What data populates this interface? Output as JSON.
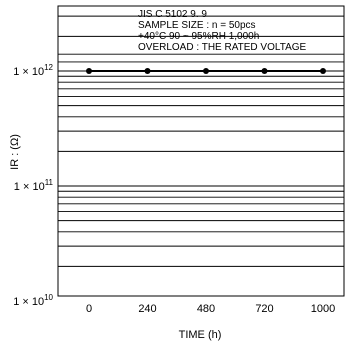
{
  "chart_data": {
    "type": "line",
    "x": [
      0,
      240,
      480,
      720,
      1000
    ],
    "x_tick_labels": [
      "0",
      "240",
      "480",
      "720",
      "1000"
    ],
    "xlabel": "TIME  (h)",
    "ylabel": "IR : (Ω)",
    "y_scale": "log",
    "ylim": [
      10000000000,
      1600000000000
    ],
    "y_ticks": [
      {
        "value": 1000000000000,
        "base": "1 × 10",
        "exp": "12"
      },
      {
        "value": 100000000000,
        "base": "1 × 10",
        "exp": "11"
      },
      {
        "value": 10000000000,
        "base": "1 × 10",
        "exp": "10"
      }
    ],
    "series": [
      {
        "values": [
          1000000000000,
          1000000000000,
          1000000000000,
          1000000000000,
          1000000000000
        ]
      }
    ],
    "annotation": [
      "JIS C 5102 9. 9",
      "SAMPLE SIZE : n = 50pcs",
      "+40°C 90 ~ 95%RH  1,000h",
      "OVERLOAD : THE RATED VOLTAGE"
    ],
    "grid": "horizontal log gridlines",
    "colors": {
      "line": "#000000",
      "marker": "#000000",
      "grid": "#000000"
    }
  }
}
